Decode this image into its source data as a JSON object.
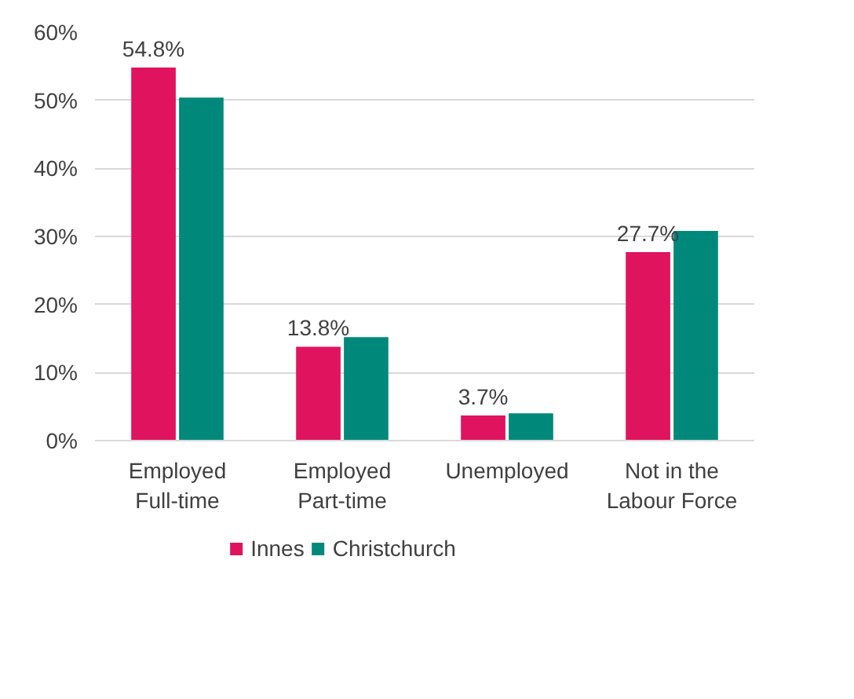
{
  "chart_data": {
    "type": "bar",
    "categories": [
      "Employed\nFull-time",
      "Employed\nPart-time",
      "Unemployed",
      "Not in the\nLabour Force"
    ],
    "series": [
      {
        "name": "Innes",
        "color": "#e0135f",
        "values": [
          54.8,
          13.8,
          3.7,
          27.7
        ],
        "value_labels": [
          "54.8%",
          "13.8%",
          "3.7%",
          "27.7%"
        ]
      },
      {
        "name": "Christchurch",
        "color": "#00897b",
        "values": [
          50.4,
          15.2,
          4.0,
          30.8
        ]
      }
    ],
    "ylim": [
      0,
      60
    ],
    "yticks": [
      {
        "value": 0,
        "label": "0%"
      },
      {
        "value": 10,
        "label": "10%"
      },
      {
        "value": 20,
        "label": "20%"
      },
      {
        "value": 30,
        "label": "30%"
      },
      {
        "value": 40,
        "label": "40%"
      },
      {
        "value": 50,
        "label": "50%"
      },
      {
        "value": 60,
        "label": "60%"
      }
    ],
    "grid": "y",
    "legend": "bottom"
  }
}
